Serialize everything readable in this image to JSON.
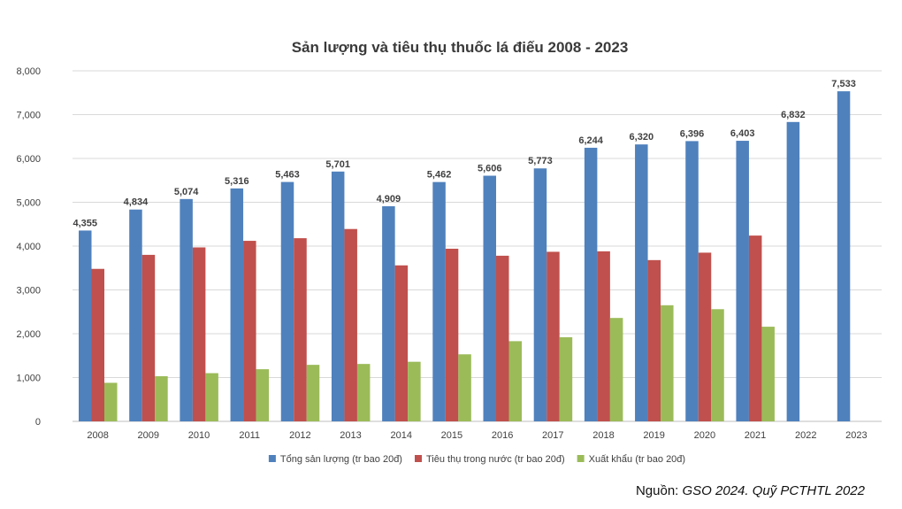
{
  "chart_data": {
    "type": "bar",
    "title": "Sản lượng và tiêu thụ thuốc lá điếu 2008 - 2023",
    "xlabel": "",
    "ylabel": "",
    "ylim": [
      0,
      8000
    ],
    "y_ticks": [
      "0",
      "1,000",
      "2,000",
      "3,000",
      "4,000",
      "5,000",
      "6,000",
      "7,000",
      "8,000"
    ],
    "grid": true,
    "legend_position": "bottom",
    "categories": [
      "2008",
      "2009",
      "2010",
      "2011",
      "2012",
      "2013",
      "2014",
      "2015",
      "2016",
      "2017",
      "2018",
      "2019",
      "2020",
      "2021",
      "2022",
      "2023"
    ],
    "series": [
      {
        "name": "Tổng sản lượng (tr bao 20đ)",
        "color": "#4f81bd",
        "values": [
          4355,
          4834,
          5074,
          5316,
          5463,
          5701,
          4909,
          5462,
          5606,
          5773,
          6244,
          6320,
          6396,
          6403,
          6832,
          7533
        ],
        "labels": [
          "4,355",
          "4,834",
          "5,074",
          "5,316",
          "5,463",
          "5,701",
          "4,909",
          "5,462",
          "5,606",
          "5,773",
          "6,244",
          "6,320",
          "6,396",
          "6,403",
          "6,832",
          "7,533"
        ]
      },
      {
        "name": "Tiêu thụ trong nước (tr bao 20đ)",
        "color": "#c0504d",
        "values": [
          3480,
          3800,
          3970,
          4120,
          4180,
          4390,
          3560,
          3940,
          3780,
          3870,
          3880,
          3680,
          3850,
          4240,
          null,
          null
        ]
      },
      {
        "name": "Xuất khẩu (tr bao 20đ)",
        "color": "#9bbb59",
        "values": [
          880,
          1030,
          1100,
          1190,
          1290,
          1310,
          1360,
          1530,
          1830,
          1920,
          2360,
          2650,
          2560,
          2160,
          null,
          null
        ]
      }
    ]
  },
  "source": {
    "prefix": "Nguồn: ",
    "text": "GSO 2024. Quỹ PCTHTL 2022"
  }
}
